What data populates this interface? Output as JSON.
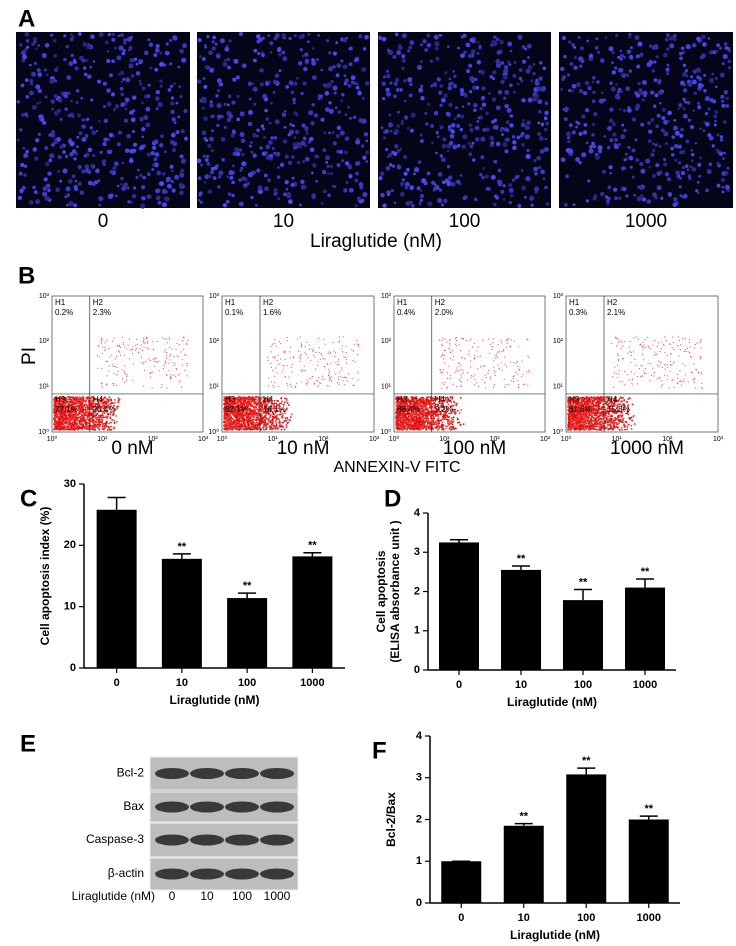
{
  "panel_labels": [
    "A",
    "B",
    "C",
    "D",
    "E",
    "F"
  ],
  "panel_a": {
    "images": [
      "0",
      "10",
      "100",
      "1000"
    ],
    "xlabel": "Liraglutide (nM)"
  },
  "panel_b": {
    "ylabel": "PI",
    "xlabel": "ANNEXIN-V FITC",
    "ticks": [
      "10⁰",
      "10¹",
      "10²",
      "10³"
    ],
    "plots": [
      {
        "caption": "0 nM",
        "quadrants": [
          {
            "name": "H1",
            "value": "0.2%"
          },
          {
            "name": "H2",
            "value": "2.3%"
          },
          {
            "name": "H3",
            "value": "77.1%"
          },
          {
            "name": "H4",
            "value": "20.4%"
          }
        ]
      },
      {
        "caption": "10 nM",
        "quadrants": [
          {
            "name": "H1",
            "value": "0.1%"
          },
          {
            "name": "H2",
            "value": "1.6%"
          },
          {
            "name": "H3",
            "value": "82.1%"
          },
          {
            "name": "H4",
            "value": "16.1%"
          }
        ]
      },
      {
        "caption": "100 nM",
        "quadrants": [
          {
            "name": "H1",
            "value": "0.4%"
          },
          {
            "name": "H2",
            "value": "2.0%"
          },
          {
            "name": "H3",
            "value": "88.4%"
          },
          {
            "name": "H4",
            "value": "9.2%"
          }
        ]
      },
      {
        "caption": "1000 nM",
        "quadrants": [
          {
            "name": "H1",
            "value": "0.3%"
          },
          {
            "name": "H2",
            "value": "2.1%"
          },
          {
            "name": "H3",
            "value": "81.6%"
          },
          {
            "name": "H4",
            "value": "15.8%"
          }
        ]
      }
    ]
  },
  "panel_e": {
    "proteins": [
      "Bcl-2",
      "Bax",
      "Caspase-3",
      "β-actin"
    ],
    "xlabel": "Liraglutide (nM)",
    "lanes": [
      "0",
      "10",
      "100",
      "1000"
    ]
  },
  "chart_data": [
    {
      "type": "bar",
      "ylabel": "Cell apoptosis index (%)",
      "xlabel": "Liraglutide (nM)",
      "categories": [
        "0",
        "10",
        "100",
        "1000"
      ],
      "values": [
        25.8,
        17.8,
        11.4,
        18.2
      ],
      "errors": [
        2.0,
        0.8,
        0.8,
        0.6
      ],
      "annotations": [
        null,
        "**",
        "**",
        "**"
      ],
      "ylim": [
        0,
        30
      ],
      "yticks": [
        0,
        10,
        20,
        30
      ],
      "color": "#000000"
    },
    {
      "type": "bar",
      "ylabel": [
        "Cell apoptosis",
        "(ELISA absorbance unit )"
      ],
      "xlabel": "Liraglutide (nM)",
      "categories": [
        "0",
        "10",
        "100",
        "1000"
      ],
      "values": [
        3.25,
        2.55,
        1.78,
        2.1
      ],
      "errors": [
        0.07,
        0.1,
        0.27,
        0.22
      ],
      "annotations": [
        null,
        "**",
        "**",
        "**"
      ],
      "ylim": [
        0,
        4
      ],
      "yticks": [
        0,
        1,
        2,
        3,
        4
      ],
      "color": "#000000"
    },
    {
      "type": "bar",
      "ylabel": "Bcl-2/Bax",
      "xlabel": "Liraglutide (nM)",
      "categories": [
        "0",
        "10",
        "100",
        "1000"
      ],
      "values": [
        1.0,
        1.85,
        3.08,
        2.0
      ],
      "errors": [
        0,
        0.05,
        0.15,
        0.08
      ],
      "annotations": [
        null,
        "**",
        "**",
        "**"
      ],
      "ylim": [
        0,
        4
      ],
      "yticks": [
        0,
        1,
        2,
        3,
        4
      ],
      "color": "#000000"
    }
  ]
}
